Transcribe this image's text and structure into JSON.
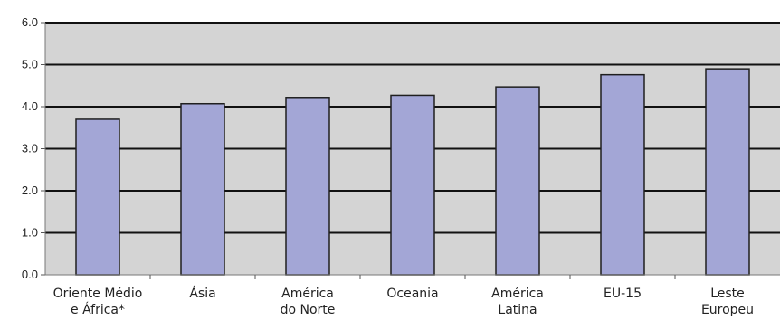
{
  "chart_data": {
    "type": "bar",
    "title": "",
    "xlabel": "",
    "ylabel": "",
    "categories": [
      [
        "Oriente Médio",
        "e África*"
      ],
      [
        "Ásia"
      ],
      [
        "América",
        "do Norte"
      ],
      [
        "Oceania"
      ],
      [
        "América",
        "Latina"
      ],
      [
        "EU-15"
      ],
      [
        "Leste",
        "Europeu"
      ]
    ],
    "values": [
      3.7,
      4.07,
      4.22,
      4.27,
      4.47,
      4.76,
      4.9
    ],
    "ylim": [
      0,
      6
    ],
    "yticks": [
      "0.0",
      "1.0",
      "2.0",
      "3.0",
      "4.0",
      "5.0",
      "6.0"
    ],
    "grid": true,
    "legend": "none",
    "colors": {
      "plot_background": "#d4d4d4",
      "bar_fill": "#a3a6d6",
      "bar_stroke": "#1f1f1f",
      "gridline": "#111111"
    }
  }
}
